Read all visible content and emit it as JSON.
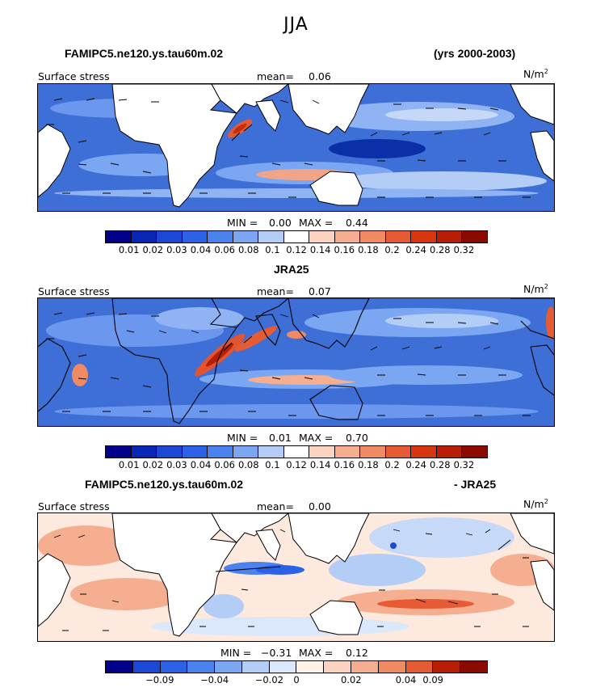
{
  "title": "JJA",
  "panels": [
    {
      "header_left": "FAMIPC5.ne120.ys.tau60m.02",
      "header_right": "(yrs 2000-2003)",
      "field": "Surface stress",
      "mean_label": "mean=",
      "mean": "0.06",
      "units_base": "N/m",
      "units_exp": "2",
      "min_label": "MIN =",
      "min": "0.00",
      "max_label": "MAX =",
      "max": "0.44",
      "colorbar": [
        "0.01",
        "0.02",
        "0.03",
        "0.04",
        "0.06",
        "0.08",
        "0.1",
        "0.12",
        "0.14",
        "0.16",
        "0.18",
        "0.2",
        "0.24",
        "0.28",
        "0.32"
      ]
    },
    {
      "header_left": "JRA25",
      "header_right": "",
      "field": "Surface stress",
      "mean_label": "mean=",
      "mean": "0.07",
      "units_base": "N/m",
      "units_exp": "2",
      "min_label": "MIN =",
      "min": "0.01",
      "max_label": "MAX =",
      "max": "0.70",
      "colorbar": [
        "0.01",
        "0.02",
        "0.03",
        "0.04",
        "0.06",
        "0.08",
        "0.1",
        "0.12",
        "0.14",
        "0.16",
        "0.18",
        "0.2",
        "0.24",
        "0.28",
        "0.32"
      ]
    },
    {
      "header_left": "FAMIPC5.ne120.ys.tau60m.02",
      "header_right": "- JRA25",
      "field": "Surface stress",
      "mean_label": "mean=",
      "mean": "0.00",
      "units_base": "N/m",
      "units_exp": "2",
      "min_label": "MIN =",
      "min": "−0.31",
      "max_label": "MAX =",
      "max": "0.12",
      "colorbar": [
        "−0.09",
        "−0.04",
        "−0.02",
        "0",
        "0.02",
        "0.04",
        "0.09"
      ]
    }
  ],
  "colors": {
    "abs_scale": [
      "#00008b",
      "#0a26b4",
      "#1d48d6",
      "#2c62e8",
      "#4a82ee",
      "#7aa6f2",
      "#b4cdf7",
      "#ffffff",
      "#fbd3c0",
      "#f6ae90",
      "#ef8a63",
      "#e65b34",
      "#d8360f",
      "#b81d05",
      "#8b0a00"
    ],
    "diff_scale": [
      "#00008b",
      "#1d48d6",
      "#4a82ee",
      "#7aa6f2",
      "#b4cdf7",
      "#dbe7fb",
      "#fff1e6",
      "#fbd3c0",
      "#f6ae90",
      "#ef8a63",
      "#e65b34",
      "#b81d05",
      "#8b0a00"
    ]
  }
}
